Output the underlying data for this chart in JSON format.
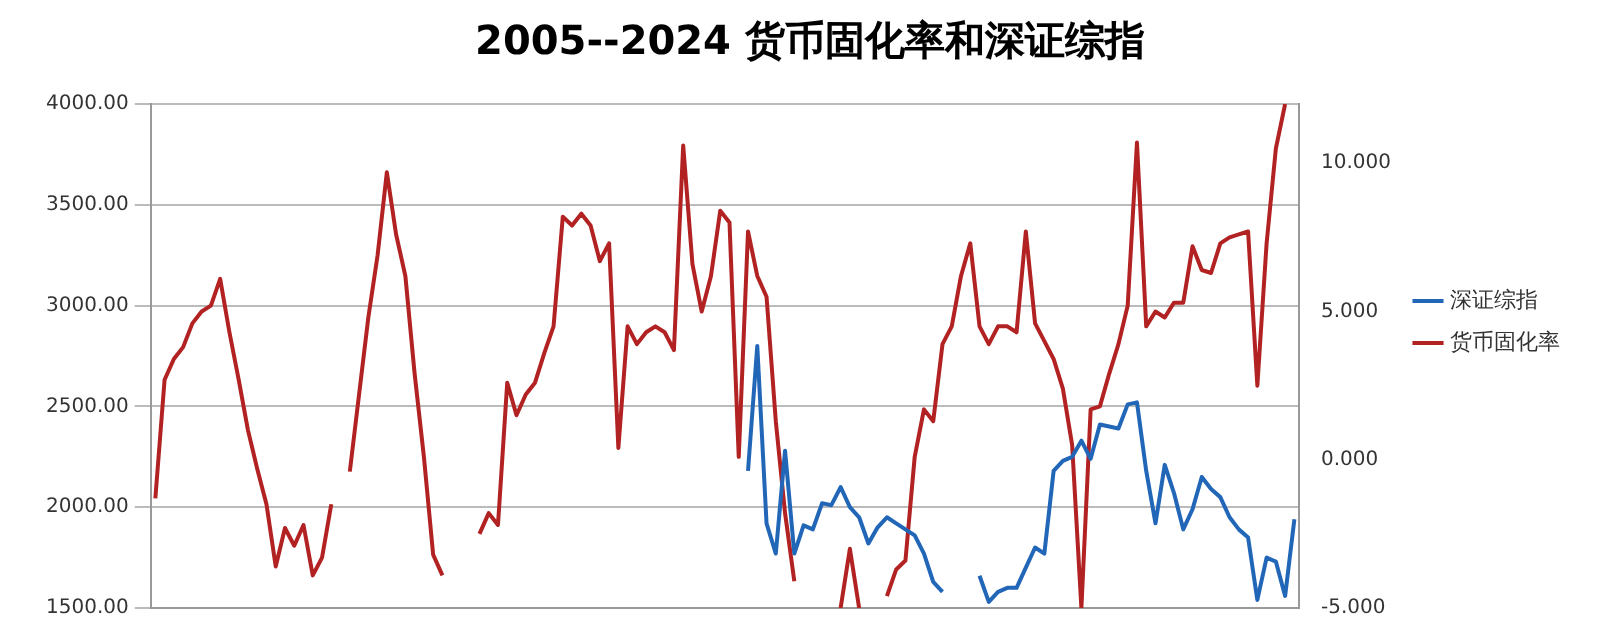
{
  "chart_data": {
    "type": "line",
    "title": "2005--2024 货币固化率和深证综指",
    "categories": [
      null,
      null,
      null,
      null,
      null,
      null,
      null,
      null,
      null,
      null,
      null,
      null,
      null,
      null,
      null,
      null,
      null,
      null,
      null,
      null,
      null,
      null,
      null,
      null,
      null,
      null,
      null,
      null,
      null,
      null,
      null,
      null,
      null,
      null,
      null,
      null,
      null,
      null,
      null,
      null,
      null,
      null,
      null,
      null,
      null,
      null,
      null,
      null,
      null,
      null,
      null,
      null,
      null,
      null,
      null,
      null,
      null,
      null,
      null,
      null,
      null,
      null,
      null,
      null,
      null,
      null,
      null,
      null,
      null,
      null,
      null,
      null,
      null,
      null,
      null,
      null,
      null,
      null,
      null,
      null,
      null,
      null,
      null,
      null,
      null,
      null,
      null,
      null,
      null,
      null,
      null,
      null,
      null,
      null,
      null,
      null,
      null,
      null,
      null,
      null,
      null,
      null,
      null,
      null,
      null,
      null,
      null,
      null,
      null,
      null,
      null,
      null,
      null,
      null,
      null,
      null,
      null,
      null,
      null,
      null,
      null,
      null,
      null,
      null
    ],
    "series": [
      {
        "name": "深证综指",
        "color": "#2266b8",
        "values": [
          null,
          null,
          null,
          null,
          null,
          null,
          null,
          null,
          null,
          null,
          null,
          null,
          null,
          null,
          null,
          null,
          null,
          null,
          null,
          null,
          null,
          null,
          null,
          null,
          null,
          null,
          null,
          null,
          null,
          null,
          null,
          null,
          null,
          null,
          null,
          null,
          null,
          null,
          null,
          null,
          null,
          null,
          null,
          null,
          null,
          null,
          null,
          null,
          null,
          null,
          null,
          null,
          null,
          null,
          null,
          null,
          null,
          null,
          null,
          null,
          null,
          null,
          null,
          null,
          2180,
          2800,
          1920,
          1770,
          2280,
          1770,
          1910,
          1890,
          2020,
          2010,
          2100,
          2000,
          1950,
          1820,
          1900,
          1950,
          1920,
          1890,
          1860,
          1770,
          1630,
          1580,
          null,
          null,
          null,
          1660,
          1530,
          1580,
          1600,
          1600,
          1700,
          1800,
          1770,
          2180,
          2230,
          2250,
          2330,
          2240,
          2410,
          2400,
          2390,
          2510,
          2520,
          2180,
          1920,
          2210,
          2070,
          1890,
          1990,
          2150,
          2090,
          2050,
          1950,
          1890,
          1850,
          1540,
          1750,
          1730,
          1560,
          1940
        ]
      },
      {
        "name": "货币固化率",
        "color": "#b22222",
        "axis": "y2",
        "values": [
          -1.3,
          2.7,
          3.4,
          3.8,
          4.6,
          5.0,
          5.2,
          6.1,
          4.3,
          2.7,
          1.0,
          -0.3,
          -1.5,
          -3.6,
          -2.3,
          -2.9,
          -2.2,
          -3.9,
          -3.3,
          -1.5,
          null,
          -0.4,
          2.2,
          4.8,
          6.9,
          9.7,
          7.6,
          6.2,
          2.9,
          0.1,
          -3.2,
          -3.9,
          null,
          null,
          null,
          -2.5,
          -1.8,
          -2.2,
          2.6,
          1.5,
          2.2,
          2.6,
          3.6,
          4.5,
          8.2,
          7.9,
          8.3,
          7.9,
          6.7,
          7.3,
          0.4,
          4.5,
          3.9,
          4.3,
          4.5,
          4.3,
          3.7,
          10.6,
          6.6,
          5.0,
          6.2,
          8.4,
          8.0,
          0.1,
          7.7,
          6.2,
          5.5,
          1.3,
          -1.8,
          -4.1,
          null,
          null,
          null,
          null,
          -5.0,
          -3.0,
          -5.0,
          null,
          null,
          -4.6,
          -3.7,
          -3.4,
          0.1,
          1.7,
          1.3,
          3.9,
          4.5,
          6.2,
          7.3,
          4.5,
          3.9,
          4.5,
          4.5,
          4.3,
          7.7,
          4.6,
          4.0,
          3.4,
          2.4,
          0.5,
          -5.0,
          1.7,
          1.8,
          2.9,
          3.9,
          5.2,
          10.7,
          4.5,
          5.0,
          4.8,
          5.3,
          5.3,
          7.2,
          6.4,
          6.3,
          7.3,
          7.5,
          7.6,
          7.7,
          2.5,
          7.3,
          10.5,
          12.0,
          null
        ]
      }
    ],
    "ylim": [
      1500,
      4000
    ],
    "yticks": [
      {
        "value": 1500,
        "label": "1500.00"
      },
      {
        "value": 2000,
        "label": "2000.00"
      },
      {
        "value": 2500,
        "label": "2500.00"
      },
      {
        "value": 3000,
        "label": "3000.00"
      },
      {
        "value": 3500,
        "label": "3500.00"
      },
      {
        "value": 4000,
        "label": "4000.00"
      }
    ],
    "y2lim": [
      -5,
      12
    ],
    "y2ticks": [
      {
        "value": -5,
        "label": "-5.000"
      },
      {
        "value": 0,
        "label": "0.000"
      },
      {
        "value": 5,
        "label": "5.000"
      },
      {
        "value": 10,
        "label": "10.000"
      }
    ],
    "grid": "y",
    "legend": "right",
    "tick_labels": "y",
    "marker": "none",
    "line_style": "solid"
  }
}
